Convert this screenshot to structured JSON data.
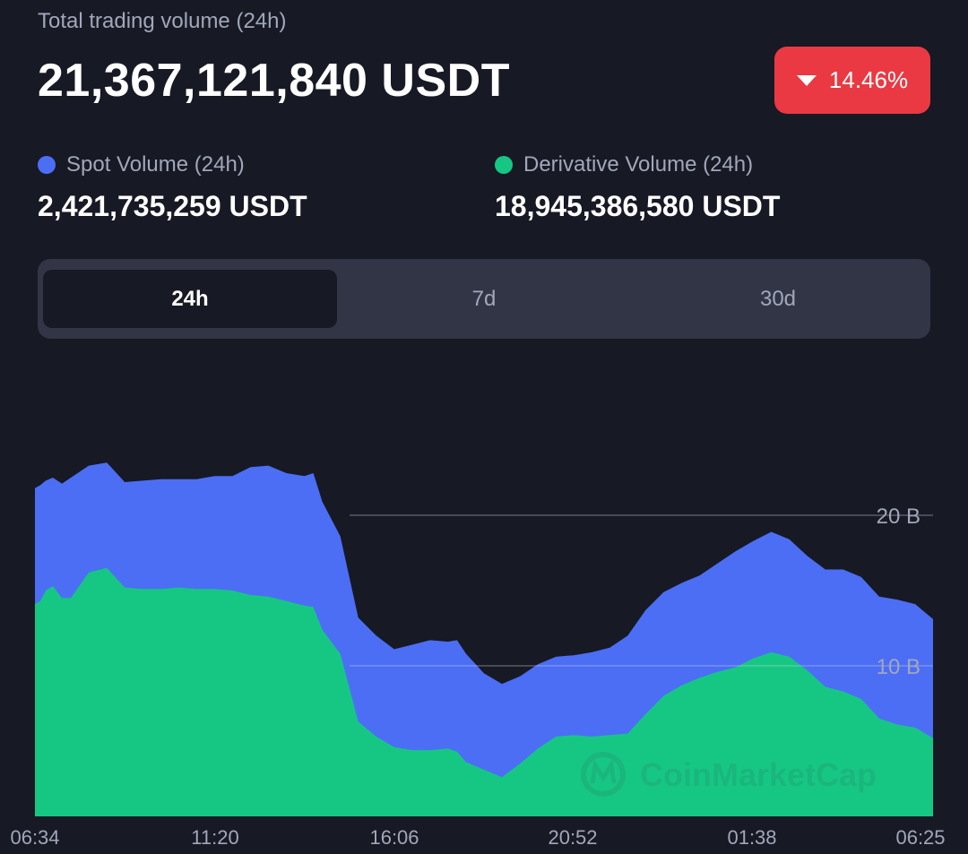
{
  "header": {
    "title": "Total trading volume (24h)",
    "total_value": "21,367,121,840 USDT",
    "change": "14.46%",
    "change_direction": "down",
    "change_color": "#ea3943"
  },
  "legend": {
    "spot": {
      "label": "Spot Volume (24h)",
      "value": "2,421,735,259 USDT",
      "color": "#4c6ef5"
    },
    "derivative": {
      "label": "Derivative Volume (24h)",
      "value": "18,945,386,580 USDT",
      "color": "#16c784"
    }
  },
  "tabs": [
    {
      "label": "24h",
      "active": true
    },
    {
      "label": "7d",
      "active": false
    },
    {
      "label": "30d",
      "active": false
    }
  ],
  "watermark": "CoinMarketCap",
  "chart_data": {
    "type": "area",
    "stacked": true,
    "x_tick_labels": [
      "06:34",
      "11:20",
      "16:06",
      "20:52",
      "01:38",
      "06:25"
    ],
    "y_tick_labels": [
      "10 B",
      "20 B"
    ],
    "y_ticks": [
      10,
      20
    ],
    "ylim": [
      0,
      25
    ],
    "grid": "horizontal",
    "x": [
      0,
      0.3,
      0.6,
      1,
      1.5,
      2,
      3,
      4,
      5,
      6,
      7,
      8,
      9,
      10,
      11,
      12,
      13,
      14,
      15,
      15.5,
      16,
      17,
      18,
      19,
      20,
      21,
      22,
      23,
      23.5,
      24,
      25,
      26,
      27,
      28,
      29,
      30,
      31,
      32,
      33,
      34,
      35,
      36,
      37,
      38,
      39,
      40,
      41,
      42,
      43,
      44,
      45,
      46,
      47,
      48,
      49,
      50
    ],
    "series": [
      {
        "name": "Spot Volume (24h)",
        "color": "#4c6ef5",
        "values": [
          7.7,
          7.7,
          7.3,
          7.2,
          7.6,
          8.0,
          7.1,
          7.0,
          7.0,
          7.2,
          7.3,
          7.2,
          7.3,
          7.5,
          7.6,
          8.5,
          8.7,
          8.5,
          8.6,
          8.9,
          8.5,
          7.8,
          6.9,
          6.7,
          6.5,
          7.0,
          7.3,
          7.1,
          7.4,
          7.2,
          6.4,
          6.2,
          5.8,
          5.6,
          5.3,
          5.3,
          5.6,
          5.8,
          6.5,
          6.9,
          6.9,
          6.8,
          6.8,
          7.2,
          7.7,
          7.8,
          8.0,
          7.8,
          7.6,
          7.8,
          8.1,
          8.1,
          8.1,
          8.3,
          8.2,
          7.9
        ]
      },
      {
        "name": "Derivative Volume (24h)",
        "color": "#16c784",
        "values": [
          14.1,
          14.3,
          15.0,
          15.3,
          14.5,
          14.5,
          16.2,
          16.5,
          15.2,
          15.1,
          15.1,
          15.2,
          15.1,
          15.1,
          15.0,
          14.7,
          14.6,
          14.3,
          14.0,
          13.9,
          12.4,
          10.8,
          6.3,
          5.3,
          4.6,
          4.4,
          4.4,
          4.5,
          4.3,
          3.6,
          3.1,
          2.6,
          3.5,
          4.5,
          5.3,
          5.4,
          5.3,
          5.4,
          5.5,
          6.8,
          8.0,
          8.7,
          9.2,
          9.6,
          9.9,
          10.5,
          10.9,
          10.6,
          9.7,
          8.6,
          8.3,
          7.8,
          6.5,
          6.1,
          5.9,
          5.2
        ]
      }
    ],
    "xlabel": "",
    "ylabel": ""
  }
}
